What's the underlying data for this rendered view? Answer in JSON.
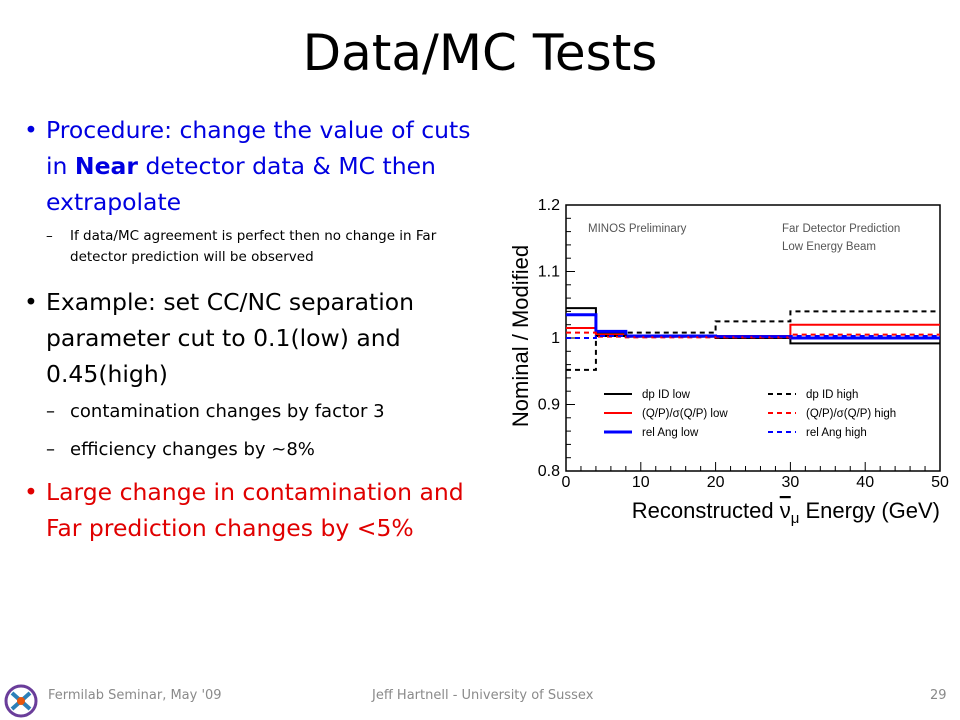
{
  "slide": {
    "title": "Data/MC Tests",
    "bullets": {
      "procedure_pre": "Procedure: change the value of cuts in ",
      "procedure_bold": "Near",
      "procedure_post": " detector data & MC then extrapolate",
      "procedure_sub": "If data/MC agreement is perfect then no change in Far detector prediction will be observed",
      "example": "Example: set CC/NC separation parameter cut to 0.1(low) and 0.45(high)",
      "example_sub1": "contamination changes by factor 3",
      "example_sub2": "efficiency changes by ~8%",
      "conclusion": "Large change in contamination and Far prediction changes by <5%"
    },
    "bullet_glyph": "•",
    "dash_glyph": "–"
  },
  "footer": {
    "left": "Fermilab Seminar, May '09",
    "center": "Jeff Hartnell - University of Sussex",
    "page": "29"
  },
  "chart_data": {
    "type": "line",
    "step": true,
    "xlabel_pre": "Reconstructed ",
    "xlabel_nu": "ν",
    "xlabel_mu": "μ",
    "xlabel_post": " Energy (GeV)",
    "ylabel": "Nominal / Modified",
    "xlim": [
      0,
      50
    ],
    "ylim": [
      0.8,
      1.2
    ],
    "xticks": [
      "0",
      "10",
      "20",
      "30",
      "40",
      "50"
    ],
    "yticks": [
      "0.8",
      "0.9",
      "1",
      "1.1",
      "1.2"
    ],
    "annotations": [
      "MINOS Preliminary",
      "Far Detector Prediction",
      "Low Energy Beam"
    ],
    "x_edges": [
      0,
      4,
      8,
      20,
      30,
      50
    ],
    "series": [
      {
        "name": "dp ID low",
        "color": "#000000",
        "style": "solid",
        "width": 2,
        "values": [
          1.045,
          1.008,
          1.002,
          1.0,
          0.992
        ]
      },
      {
        "name": "(Q/P)/σ(Q/P) low",
        "color": "#ff0000",
        "style": "solid",
        "width": 2,
        "values": [
          1.015,
          1.005,
          1.002,
          1.003,
          1.02
        ]
      },
      {
        "name": "rel Ang low",
        "color": "#0000ff",
        "style": "solid",
        "width": 3,
        "values": [
          1.035,
          1.01,
          1.003,
          1.002,
          1.0
        ]
      },
      {
        "name": "dp ID high",
        "color": "#000000",
        "style": "dashed",
        "width": 2,
        "values": [
          0.952,
          1.003,
          1.008,
          1.025,
          1.04
        ]
      },
      {
        "name": "(Q/P)/σ(Q/P) high",
        "color": "#ff0000",
        "style": "dashed",
        "width": 2,
        "values": [
          1.008,
          1.002,
          1.001,
          1.001,
          1.005
        ]
      },
      {
        "name": "rel Ang high",
        "color": "#0000ff",
        "style": "dashed",
        "width": 2,
        "values": [
          1.0,
          1.003,
          1.002,
          1.002,
          1.003
        ]
      }
    ]
  }
}
